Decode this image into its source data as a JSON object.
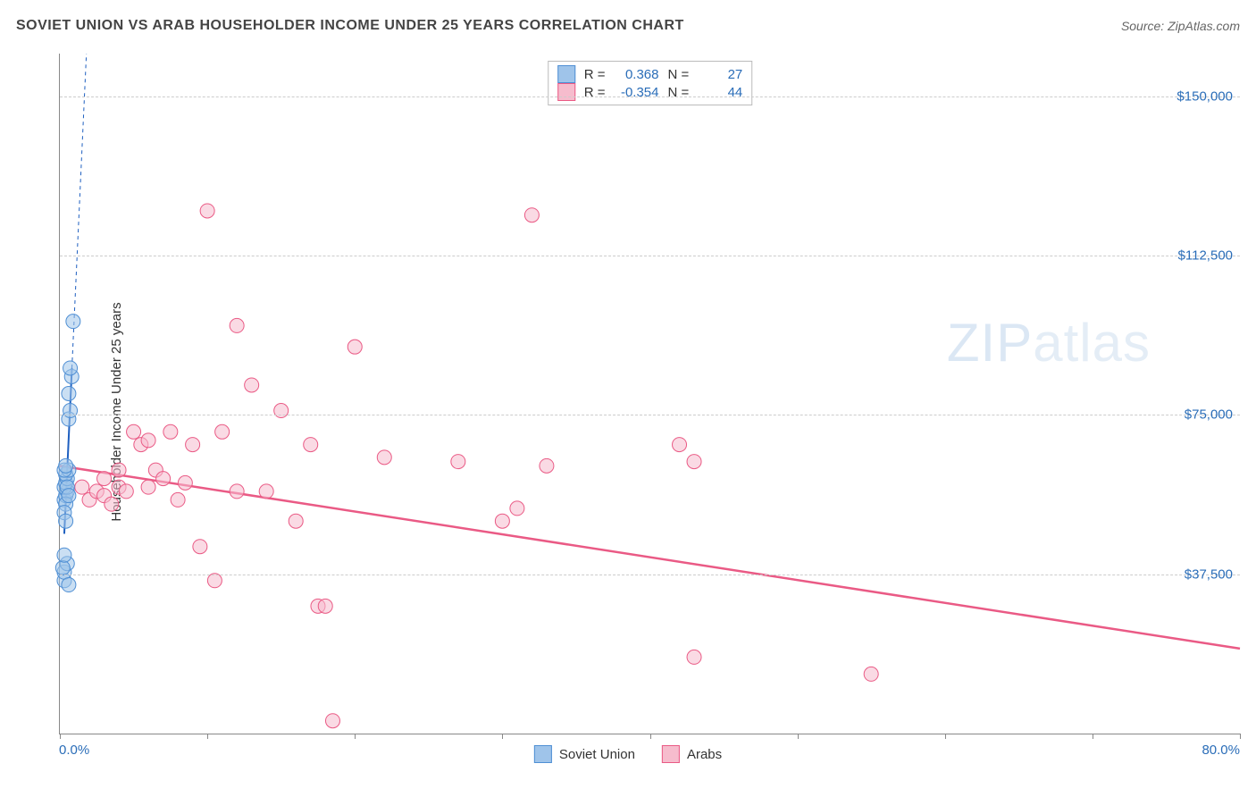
{
  "header": {
    "title": "SOVIET UNION VS ARAB HOUSEHOLDER INCOME UNDER 25 YEARS CORRELATION CHART",
    "source": "Source: ZipAtlas.com"
  },
  "watermark": {
    "zip": "ZIP",
    "atlas": "atlas"
  },
  "chart": {
    "type": "scatter",
    "yaxis_title": "Householder Income Under 25 years",
    "x_min": 0.0,
    "x_max": 80.0,
    "y_min": 0,
    "y_max": 160000,
    "x_left_label": "0.0%",
    "x_right_label": "80.0%",
    "x_ticks_pct": [
      0,
      10,
      20,
      30,
      40,
      50,
      60,
      70,
      80
    ],
    "y_gridlines": [
      {
        "value": 37500,
        "label": "$37,500"
      },
      {
        "value": 75000,
        "label": "$75,000"
      },
      {
        "value": 112500,
        "label": "$112,500"
      },
      {
        "value": 150000,
        "label": "$150,000"
      }
    ],
    "grid_color": "#cccccc",
    "axis_color": "#888888",
    "background_color": "#ffffff",
    "label_color": "#2a6db8",
    "point_radius": 8,
    "series": {
      "soviet": {
        "label": "Soviet Union",
        "fill": "#9fc4ea",
        "stroke": "#4f8fd4",
        "opacity": 0.55,
        "trend": {
          "x1": 0.3,
          "y1": 47000,
          "x2": 1.8,
          "y2": 160000,
          "solid_until_y": 86000,
          "color": "#1e5fc0",
          "width": 2
        },
        "points": [
          [
            0.3,
            36000
          ],
          [
            0.3,
            38000
          ],
          [
            0.5,
            40000
          ],
          [
            0.2,
            39000
          ],
          [
            0.3,
            42000
          ],
          [
            0.6,
            35000
          ],
          [
            0.3,
            55000
          ],
          [
            0.4,
            56000
          ],
          [
            0.5,
            57000
          ],
          [
            0.3,
            58000
          ],
          [
            0.4,
            59000
          ],
          [
            0.5,
            60000
          ],
          [
            0.4,
            61000
          ],
          [
            0.6,
            62000
          ],
          [
            0.3,
            62000
          ],
          [
            0.4,
            63000
          ],
          [
            0.5,
            58000
          ],
          [
            0.4,
            54000
          ],
          [
            0.6,
            56000
          ],
          [
            0.3,
            52000
          ],
          [
            0.6,
            74000
          ],
          [
            0.7,
            76000
          ],
          [
            0.6,
            80000
          ],
          [
            0.8,
            84000
          ],
          [
            0.7,
            86000
          ],
          [
            0.9,
            97000
          ],
          [
            0.4,
            50000
          ]
        ]
      },
      "arabs": {
        "label": "Arabs",
        "fill": "#f6bccd",
        "stroke": "#ea5a85",
        "opacity": 0.55,
        "trend": {
          "x1": 0.0,
          "y1": 63000,
          "x2": 80.0,
          "y2": 20000,
          "color": "#ea5a85",
          "width": 2.5
        },
        "points": [
          [
            1.5,
            58000
          ],
          [
            2.0,
            55000
          ],
          [
            2.5,
            57000
          ],
          [
            3.0,
            56000
          ],
          [
            3.5,
            54000
          ],
          [
            4.0,
            58000
          ],
          [
            4.5,
            57000
          ],
          [
            5.0,
            71000
          ],
          [
            5.5,
            68000
          ],
          [
            6.0,
            69000
          ],
          [
            6.5,
            62000
          ],
          [
            7.0,
            60000
          ],
          [
            7.5,
            71000
          ],
          [
            8.0,
            55000
          ],
          [
            8.5,
            59000
          ],
          [
            9.0,
            68000
          ],
          [
            9.5,
            44000
          ],
          [
            10.0,
            123000
          ],
          [
            10.5,
            36000
          ],
          [
            11.0,
            71000
          ],
          [
            12.0,
            57000
          ],
          [
            12.0,
            96000
          ],
          [
            13.0,
            82000
          ],
          [
            14.0,
            57000
          ],
          [
            15.0,
            76000
          ],
          [
            16.0,
            50000
          ],
          [
            17.0,
            68000
          ],
          [
            17.5,
            30000
          ],
          [
            18.0,
            30000
          ],
          [
            18.5,
            3000
          ],
          [
            20.0,
            91000
          ],
          [
            22.0,
            65000
          ],
          [
            27.0,
            64000
          ],
          [
            30.0,
            50000
          ],
          [
            31.0,
            53000
          ],
          [
            32.0,
            122000
          ],
          [
            33.0,
            63000
          ],
          [
            42.0,
            68000
          ],
          [
            43.0,
            18000
          ],
          [
            43.0,
            64000
          ],
          [
            55.0,
            14000
          ],
          [
            3.0,
            60000
          ],
          [
            4.0,
            62000
          ],
          [
            6.0,
            58000
          ]
        ]
      }
    },
    "stats_box": {
      "rows": [
        {
          "swatch_fill": "#9fc4ea",
          "swatch_stroke": "#4f8fd4",
          "r_label": "R =",
          "r_value": "0.368",
          "n_label": "N =",
          "n_value": "27"
        },
        {
          "swatch_fill": "#f6bccd",
          "swatch_stroke": "#ea5a85",
          "r_label": "R =",
          "r_value": "-0.354",
          "n_label": "N =",
          "n_value": "44"
        }
      ]
    },
    "bottom_legend": [
      {
        "fill": "#9fc4ea",
        "stroke": "#4f8fd4",
        "label": "Soviet Union"
      },
      {
        "fill": "#f6bccd",
        "stroke": "#ea5a85",
        "label": "Arabs"
      }
    ]
  }
}
